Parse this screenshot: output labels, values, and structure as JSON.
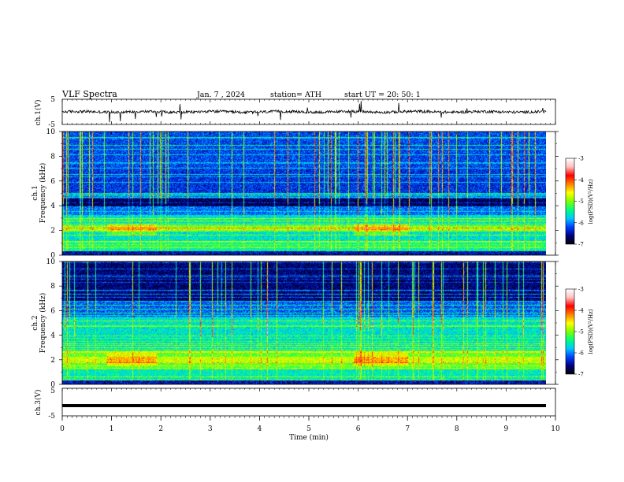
{
  "header": {
    "title": "VLF Spectra",
    "date": "Jan. 7 , 2024",
    "station": "station= ATH",
    "start_ut": "start UT = 20: 50: 1"
  },
  "colors": {
    "background": "#ffffff",
    "axes": "#000000",
    "waveform": "#000000",
    "colormap": [
      "#000000",
      "#000080",
      "#0040ff",
      "#00c8ff",
      "#00ff80",
      "#80ff00",
      "#ffff00",
      "#ff8000",
      "#ff0000",
      "#ffc0c0",
      "#ffffff"
    ]
  },
  "chart_data": [
    {
      "type": "line",
      "panel": "ch1",
      "ylabel": "ch.1(V)",
      "ylim": [
        -5,
        5
      ],
      "yticks": [
        "5",
        "-5"
      ],
      "xlim": [
        0,
        10
      ],
      "baseline": 0,
      "description_of_signal": "noisy near-zero waveform with sparse spikes"
    },
    {
      "type": "heatmap",
      "panel": "ch1",
      "ylabel_channel": "ch.1",
      "ylabel": "Frequency (kHz)",
      "ylim": [
        0,
        10
      ],
      "yticks": [
        "0",
        "2",
        "4",
        "6",
        "8",
        "10"
      ],
      "xlim": [
        0,
        10
      ],
      "colorbar": {
        "label": "log(PSD)(V²/Hz)",
        "range": [
          -7,
          -3
        ],
        "ticks": [
          "-3",
          "-4",
          "-5",
          "-6",
          "-7"
        ]
      }
    },
    {
      "type": "heatmap",
      "panel": "ch2",
      "ylabel_channel": "ch.2",
      "ylabel": "Frequency (kHz)",
      "ylim": [
        0,
        10
      ],
      "yticks": [
        "0",
        "2",
        "4",
        "6",
        "8",
        "10"
      ],
      "xlim": [
        0,
        10
      ],
      "colorbar": {
        "label": "log(PSD)(V²/Hz)",
        "range": [
          -7,
          -3
        ],
        "ticks": [
          "-3",
          "-4",
          "-5",
          "-6",
          "-7"
        ]
      }
    },
    {
      "type": "line",
      "panel": "ch3",
      "ylabel": "ch.3(V)",
      "ylim": [
        -5,
        5
      ],
      "yticks": [
        "5",
        "-5"
      ],
      "xlim": [
        0,
        10
      ],
      "baseline": -1.3,
      "xlabel": "Time (min)",
      "xticks": [
        "0",
        "1",
        "2",
        "3",
        "4",
        "5",
        "6",
        "7",
        "8",
        "9",
        "10"
      ]
    }
  ]
}
